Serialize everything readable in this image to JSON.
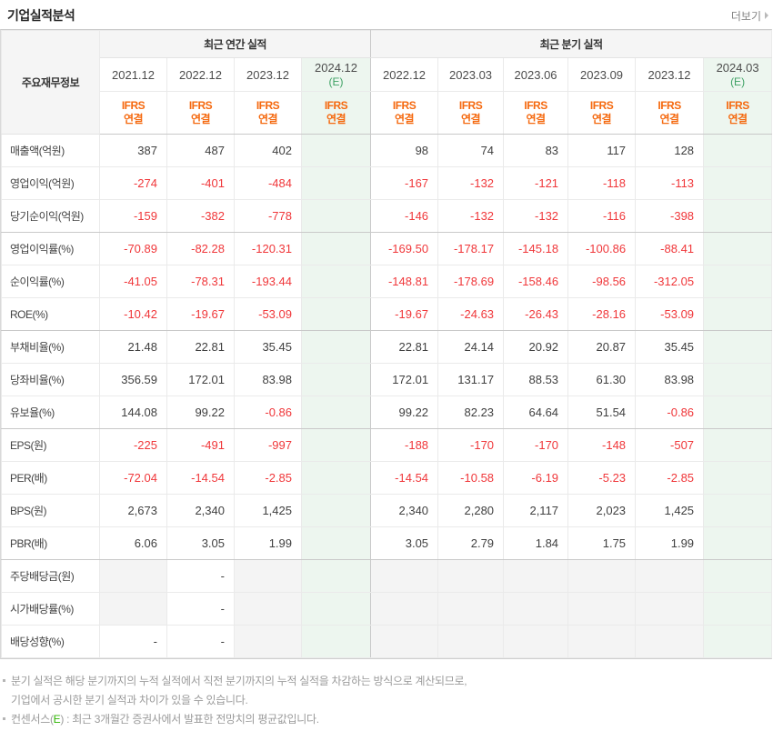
{
  "page": {
    "title": "기업실적분석",
    "more_label": "더보기"
  },
  "colors": {
    "negative_red": "#f0373a",
    "ifrs_orange": "#f5690f",
    "estimate_green": "#3fa265",
    "footnote_green": "#2db400",
    "estimate_bg": "#edf6ef",
    "header_bg": "#f5f5f5",
    "nodata_bg": "#f4f4f4"
  },
  "table": {
    "corner_label": "주요재무정보",
    "groups": [
      {
        "label": "최근 연간 실적",
        "span": 4
      },
      {
        "label": "최근 분기 실적",
        "span": 6
      }
    ],
    "estimate_suffix": "(E)",
    "ifrs_line1": "IFRS",
    "ifrs_line2": "연결",
    "columns": [
      {
        "period": "2021.12",
        "estimate": false
      },
      {
        "period": "2022.12",
        "estimate": false
      },
      {
        "period": "2023.12",
        "estimate": false
      },
      {
        "period": "2024.12",
        "estimate": true
      },
      {
        "period": "2022.12",
        "estimate": false
      },
      {
        "period": "2023.03",
        "estimate": false
      },
      {
        "period": "2023.06",
        "estimate": false
      },
      {
        "period": "2023.09",
        "estimate": false
      },
      {
        "period": "2023.12",
        "estimate": false
      },
      {
        "period": "2024.03",
        "estimate": true
      }
    ],
    "section_break_after": [
      2,
      5,
      8,
      12
    ],
    "rows": [
      {
        "label": "매출액(억원)",
        "values": [
          "387",
          "487",
          "402",
          "",
          "98",
          "74",
          "83",
          "117",
          "128",
          ""
        ]
      },
      {
        "label": "영업이익(억원)",
        "values": [
          "-274",
          "-401",
          "-484",
          "",
          "-167",
          "-132",
          "-121",
          "-118",
          "-113",
          ""
        ]
      },
      {
        "label": "당기순이익(억원)",
        "values": [
          "-159",
          "-382",
          "-778",
          "",
          "-146",
          "-132",
          "-132",
          "-116",
          "-398",
          ""
        ]
      },
      {
        "label": "영업이익률(%)",
        "values": [
          "-70.89",
          "-82.28",
          "-120.31",
          "",
          "-169.50",
          "-178.17",
          "-145.18",
          "-100.86",
          "-88.41",
          ""
        ]
      },
      {
        "label": "순이익률(%)",
        "values": [
          "-41.05",
          "-78.31",
          "-193.44",
          "",
          "-148.81",
          "-178.69",
          "-158.46",
          "-98.56",
          "-312.05",
          ""
        ]
      },
      {
        "label": "ROE(%)",
        "values": [
          "-10.42",
          "-19.67",
          "-53.09",
          "",
          "-19.67",
          "-24.63",
          "-26.43",
          "-28.16",
          "-53.09",
          ""
        ]
      },
      {
        "label": "부채비율(%)",
        "values": [
          "21.48",
          "22.81",
          "35.45",
          "",
          "22.81",
          "24.14",
          "20.92",
          "20.87",
          "35.45",
          ""
        ]
      },
      {
        "label": "당좌비율(%)",
        "values": [
          "356.59",
          "172.01",
          "83.98",
          "",
          "172.01",
          "131.17",
          "88.53",
          "61.30",
          "83.98",
          ""
        ]
      },
      {
        "label": "유보율(%)",
        "values": [
          "144.08",
          "99.22",
          "-0.86",
          "",
          "99.22",
          "82.23",
          "64.64",
          "51.54",
          "-0.86",
          ""
        ]
      },
      {
        "label": "EPS(원)",
        "values": [
          "-225",
          "-491",
          "-997",
          "",
          "-188",
          "-170",
          "-170",
          "-148",
          "-507",
          ""
        ]
      },
      {
        "label": "PER(배)",
        "values": [
          "-72.04",
          "-14.54",
          "-2.85",
          "",
          "-14.54",
          "-10.58",
          "-6.19",
          "-5.23",
          "-2.85",
          ""
        ]
      },
      {
        "label": "BPS(원)",
        "values": [
          "2,673",
          "2,340",
          "1,425",
          "",
          "2,340",
          "2,280",
          "2,117",
          "2,023",
          "1,425",
          ""
        ]
      },
      {
        "label": "PBR(배)",
        "values": [
          "6.06",
          "3.05",
          "1.99",
          "",
          "3.05",
          "2.79",
          "1.84",
          "1.75",
          "1.99",
          ""
        ]
      },
      {
        "label": "주당배당금(원)",
        "dim_empty": true,
        "values": [
          "",
          "-",
          "",
          "",
          "",
          "",
          "",
          "",
          "",
          ""
        ]
      },
      {
        "label": "시가배당률(%)",
        "dim_empty": true,
        "values": [
          "",
          "-",
          "",
          "",
          "",
          "",
          "",
          "",
          "",
          ""
        ]
      },
      {
        "label": "배당성향(%)",
        "dim_empty": true,
        "values": [
          "-",
          "-",
          "",
          "",
          "",
          "",
          "",
          "",
          "",
          ""
        ]
      }
    ]
  },
  "footnotes": {
    "note1_line1": "분기 실적은 해당 분기까지의 누적 실적에서 직전 분기까지의 누적 실적을 차감하는 방식으로 계산되므로,",
    "note1_line2": "기업에서 공시한 분기 실적과 차이가 있을 수 있습니다.",
    "note2_pre": "컨센서스(",
    "note2_e": "E",
    "note2_post": ") : 최근 3개월간 증권사에서 발표한 전망치의 평균값입니다."
  }
}
